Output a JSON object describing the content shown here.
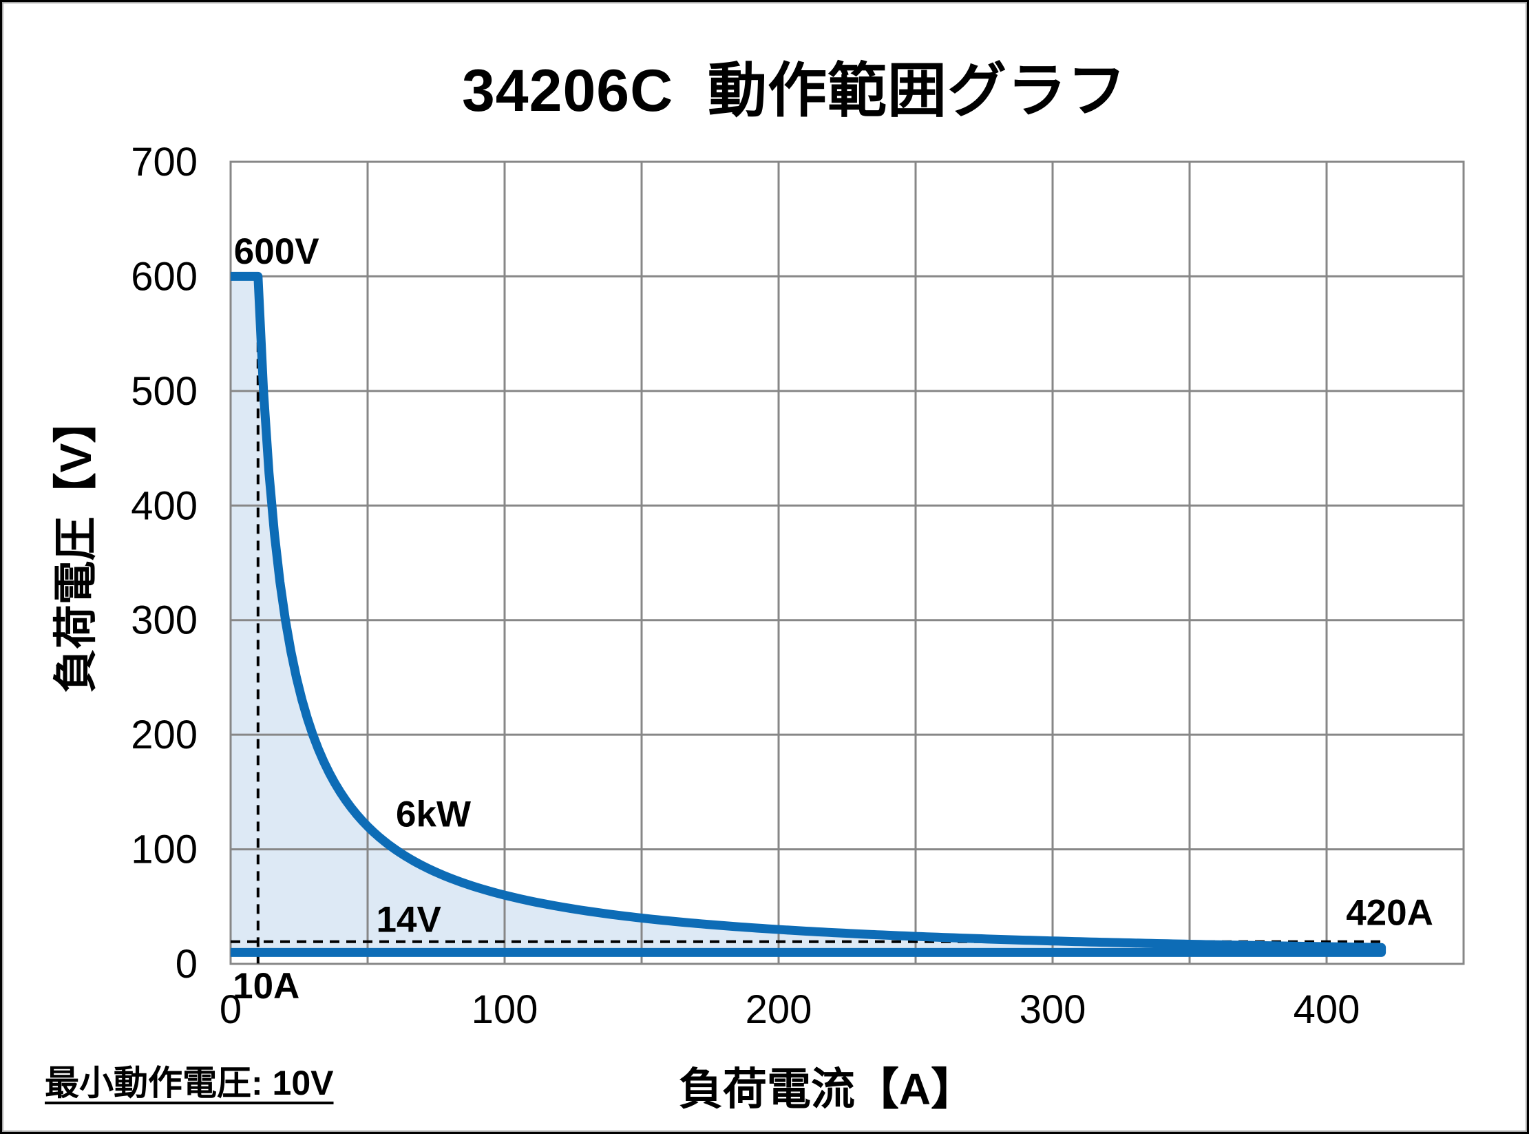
{
  "title": "34206C  動作範囲グラフ",
  "footnote": "最小動作電圧: 10V",
  "chart_data": {
    "type": "area",
    "title": "34206C 動作範囲グラフ",
    "xlabel": "負荷電流【A】",
    "ylabel": "負荷電圧【V】",
    "xlim": [
      0,
      450
    ],
    "ylim": [
      0,
      700
    ],
    "x_tick_labels": [
      "0",
      "100",
      "200",
      "300",
      "400"
    ],
    "x_tick_values": [
      0,
      100,
      200,
      300,
      400
    ],
    "y_tick_labels": [
      "0",
      "100",
      "200",
      "300",
      "400",
      "500",
      "600",
      "700"
    ],
    "y_tick_values": [
      0,
      100,
      200,
      300,
      400,
      500,
      600,
      700
    ],
    "x_grid_step": 50,
    "y_grid_step": 100,
    "grid": true,
    "boundary": {
      "max_voltage_V": 600,
      "power_limit_W": 6000,
      "max_current_A": 420,
      "min_voltage_line_V": 10,
      "min_operating_voltage_V": 10
    },
    "curve_points": [
      [
        0,
        600
      ],
      [
        10,
        600
      ],
      [
        12,
        500
      ],
      [
        15,
        400
      ],
      [
        20,
        300
      ],
      [
        30,
        200
      ],
      [
        40,
        150
      ],
      [
        60,
        100
      ],
      [
        80,
        75
      ],
      [
        120,
        50
      ],
      [
        200,
        30
      ],
      [
        300,
        20
      ],
      [
        420,
        14.3
      ],
      [
        420,
        10
      ],
      [
        0,
        10
      ]
    ],
    "dashed_guides": [
      {
        "axis": "x",
        "value": 10
      },
      {
        "axis": "y",
        "value": 14
      }
    ],
    "annotations": [
      {
        "text": "600V",
        "i": 1.2,
        "v": 611,
        "anchor": "start"
      },
      {
        "text": "6kW",
        "i": 74,
        "v": 120,
        "anchor": "middle"
      },
      {
        "text": "14V",
        "i": 65,
        "v": 28,
        "anchor": "middle"
      },
      {
        "text": "10A",
        "i": 13,
        "v": -30,
        "anchor": "middle"
      },
      {
        "text": "420A",
        "i": 423,
        "v": 34,
        "anchor": "middle"
      }
    ],
    "colors": {
      "line": "#0d6cb6",
      "fill": "#dde9f5",
      "grid": "#878787",
      "text": "#000000"
    }
  }
}
